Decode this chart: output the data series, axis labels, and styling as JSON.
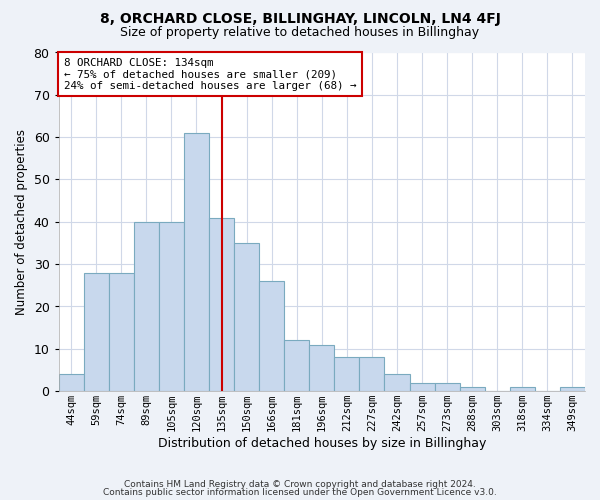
{
  "title": "8, ORCHARD CLOSE, BILLINGHAY, LINCOLN, LN4 4FJ",
  "subtitle": "Size of property relative to detached houses in Billinghay",
  "xlabel": "Distribution of detached houses by size in Billinghay",
  "ylabel": "Number of detached properties",
  "bar_heights": [
    4,
    28,
    28,
    40,
    40,
    61,
    41,
    35,
    26,
    12,
    11,
    8,
    8,
    4,
    2,
    2,
    1,
    0,
    1,
    0,
    1
  ],
  "bar_labels": [
    "44sqm",
    "59sqm",
    "74sqm",
    "89sqm",
    "105sqm",
    "120sqm",
    "135sqm",
    "150sqm",
    "166sqm",
    "181sqm",
    "196sqm",
    "212sqm",
    "227sqm",
    "242sqm",
    "257sqm",
    "273sqm",
    "288sqm",
    "303sqm",
    "318sqm",
    "334sqm",
    "349sqm"
  ],
  "bar_color": "#c8d8ed",
  "bar_edge_color": "#7aaabf",
  "annotation_text": "8 ORCHARD CLOSE: 134sqm\n← 75% of detached houses are smaller (209)\n24% of semi-detached houses are larger (68) →",
  "vline_color": "#cc0000",
  "vline_x": 6.0,
  "ylim": [
    0,
    80
  ],
  "yticks": [
    0,
    10,
    20,
    30,
    40,
    50,
    60,
    70,
    80
  ],
  "footer1": "Contains HM Land Registry data © Crown copyright and database right 2024.",
  "footer2": "Contains public sector information licensed under the Open Government Licence v3.0.",
  "fig_bg_color": "#eef2f8",
  "plot_bg_color": "#ffffff",
  "grid_color": "#d0d8e8",
  "title_fontsize": 10,
  "subtitle_fontsize": 9
}
